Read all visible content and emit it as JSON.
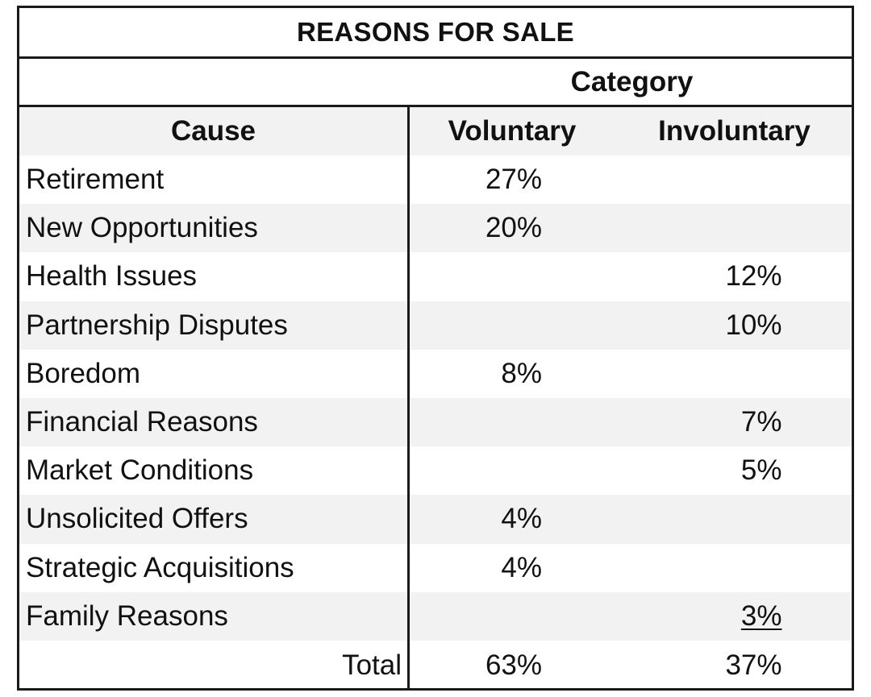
{
  "table": {
    "title": "REASONS FOR SALE",
    "category_label": "Category",
    "headers": {
      "cause": "Cause",
      "voluntary": "Voluntary",
      "involuntary": "Involuntary"
    },
    "rows": [
      {
        "cause": "Retirement",
        "voluntary": "27%",
        "involuntary": ""
      },
      {
        "cause": "New Opportunities",
        "voluntary": "20%",
        "involuntary": ""
      },
      {
        "cause": "Health Issues",
        "voluntary": "",
        "involuntary": "12%"
      },
      {
        "cause": "Partnership Disputes",
        "voluntary": "",
        "involuntary": "10%"
      },
      {
        "cause": "Boredom",
        "voluntary": "8%",
        "involuntary": ""
      },
      {
        "cause": "Financial Reasons",
        "voluntary": "",
        "involuntary": "7%"
      },
      {
        "cause": "Market Conditions",
        "voluntary": "",
        "involuntary": "5%"
      },
      {
        "cause": "Unsolicited Offers",
        "voluntary": "4%",
        "involuntary": ""
      },
      {
        "cause": "Strategic Acquisitions",
        "voluntary": "4%",
        "involuntary": ""
      },
      {
        "cause": "Family Reasons",
        "voluntary": "",
        "involuntary": "3%"
      }
    ],
    "total": {
      "label": "Total",
      "voluntary": "63%",
      "involuntary": "37%"
    }
  },
  "colors": {
    "border": "#1a1a1a",
    "row_shade": "#f2f2f2",
    "text": "#111111"
  }
}
